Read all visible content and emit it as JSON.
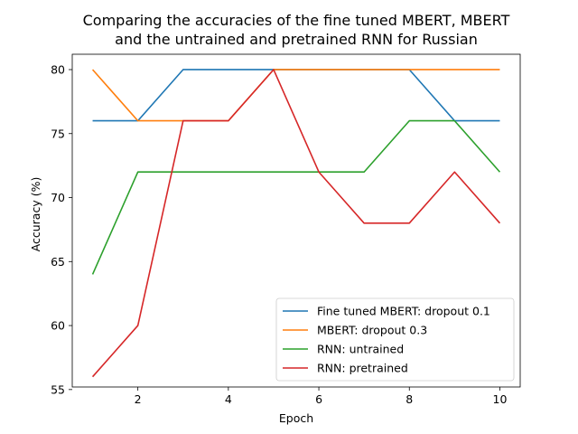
{
  "chart_data": {
    "type": "line",
    "title_lines": [
      "Comparing the accuracies of the fine tuned MBERT, MBERT",
      "and the untrained and pretrained RNN for Russian"
    ],
    "xlabel": "Epoch",
    "ylabel": "Accuracy (%)",
    "x": [
      1,
      2,
      3,
      4,
      5,
      6,
      7,
      8,
      9,
      10
    ],
    "xlim": [
      0.55,
      10.45
    ],
    "ylim": [
      55.2,
      81.2
    ],
    "xticks": [
      2,
      4,
      6,
      8,
      10
    ],
    "yticks": [
      55,
      60,
      65,
      70,
      75,
      80
    ],
    "grid": false,
    "legend_position": "lower-right",
    "series": [
      {
        "name": "Fine tuned MBERT: dropout 0.1",
        "color": "#1f77b4",
        "values": [
          76,
          76,
          80,
          80,
          80,
          80,
          80,
          80,
          76,
          76
        ]
      },
      {
        "name": "MBERT: dropout 0.3",
        "color": "#ff7f0e",
        "values": [
          80,
          76,
          76,
          76,
          80,
          80,
          80,
          80,
          80,
          80
        ]
      },
      {
        "name": "RNN: untrained",
        "color": "#2ca02c",
        "values": [
          64,
          72,
          72,
          72,
          72,
          72,
          72,
          76,
          76,
          72
        ]
      },
      {
        "name": "RNN: pretrained",
        "color": "#d62728",
        "values": [
          56,
          60,
          76,
          76,
          80,
          72,
          68,
          68,
          72,
          68
        ]
      }
    ]
  }
}
